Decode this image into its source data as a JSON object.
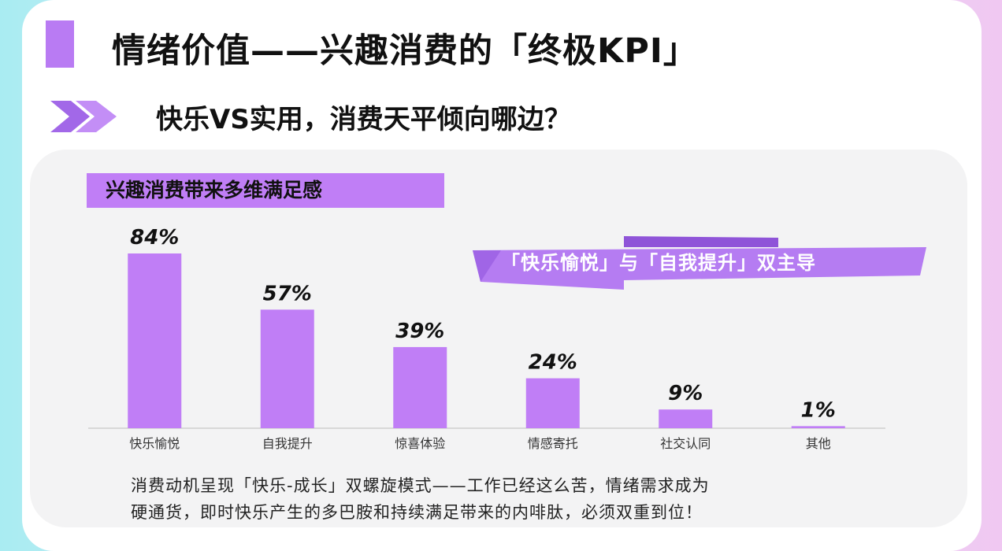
{
  "header": {
    "title": "情绪价值——兴趣消费的「终极KPI」",
    "subtitle": "快乐VS实用，消费天平倾向哪边？"
  },
  "chart_section": {
    "label": "兴趣消费带来多维满足感",
    "highlight": "「快乐愉悦」与「自我提升」双主导"
  },
  "chart_data": {
    "type": "bar",
    "title": "兴趣消费带来多维满足感",
    "categories": [
      "快乐愉悦",
      "自我提升",
      "惊喜体验",
      "情感寄托",
      "社交认同",
      "其他"
    ],
    "values": [
      84,
      57,
      39,
      24,
      9,
      1
    ],
    "value_labels": [
      "84%",
      "57%",
      "39%",
      "24%",
      "9%",
      "1%"
    ],
    "unit": "%",
    "ylim": [
      0,
      84
    ],
    "grid": false,
    "bar_color": "#c07ef6"
  },
  "caption": {
    "line1": "消费动机呈现「快乐-成长」双螺旋模式——工作已经这么苦，情绪需求成为",
    "line2": "硬通货，即时快乐产生的多巴胺和持续满足带来的内啡肽，必须双重到位！"
  },
  "colors": {
    "accent": "#c07ef6",
    "banner": "#b57cf2"
  },
  "icons": {
    "chevron": "double-chevron-right-icon"
  }
}
